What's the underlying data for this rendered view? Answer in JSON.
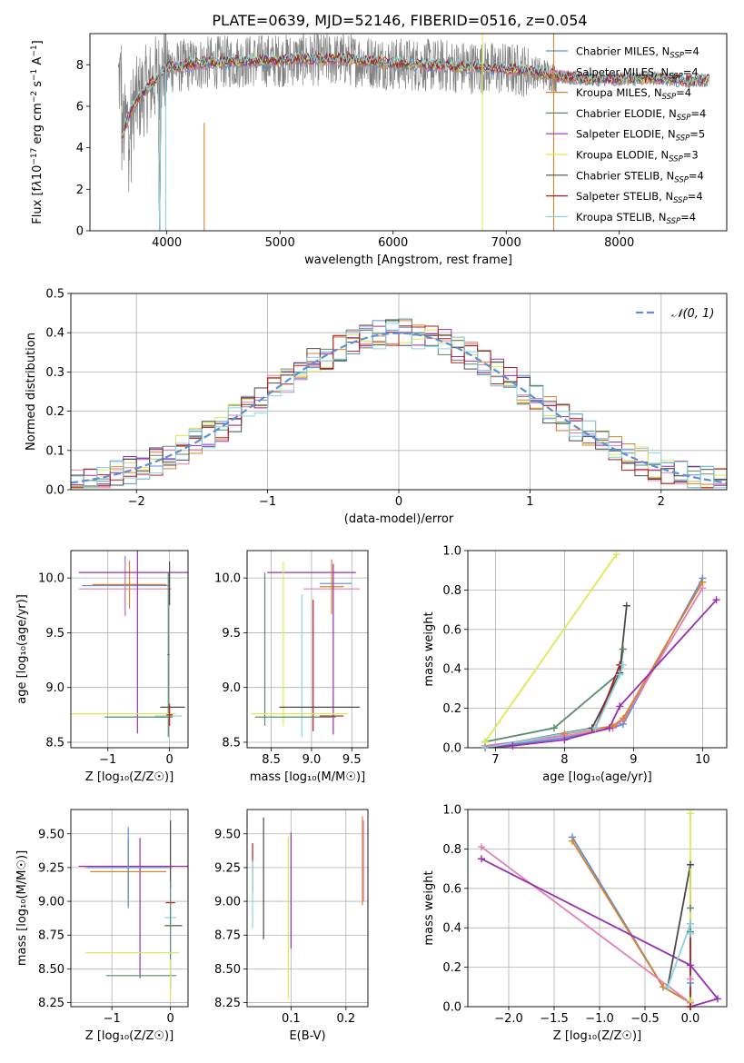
{
  "title": "PLATE=0639, MJD=52146, FIBERID=0516, z=0.054",
  "colors": {
    "c1": "#5b8fd6",
    "c2": "#e37fb4",
    "c3": "#d9822b",
    "c4": "#5a8a6a",
    "c5": "#9a2fb0",
    "c6": "#d8ec52",
    "c7": "#4a4a4a",
    "c8": "#b01e1e",
    "c9": "#88d4e0",
    "spec": "#808080",
    "grid": "#b0b0b0"
  },
  "chart_data": [
    {
      "id": "spectrum",
      "type": "line",
      "xlabel": "wavelength [Angstrom, rest frame]",
      "ylabel_html": "Flux [f<tspan font-style='italic'>λ</tspan>10<tspan dy='-5' font-size='9'>−17</tspan><tspan dy='5'> erg cm</tspan><tspan dy='-5' font-size='9'>−2</tspan><tspan dy='5'> s</tspan><tspan dy='-5' font-size='9'>−1</tspan><tspan dy='5'> A</tspan><tspan dy='-5' font-size='9'>−1</tspan><tspan dy='5'>]</tspan>",
      "xlim": [
        3320,
        8950
      ],
      "ylim": [
        0,
        9.5
      ],
      "xticks": [
        4000,
        5000,
        6000,
        7000,
        8000
      ],
      "yticks": [
        0,
        2,
        4,
        6,
        8
      ],
      "grid": false,
      "legend_position": "upper-right",
      "continuum": {
        "x": [
          3600,
          3700,
          3800,
          3900,
          4000,
          4100,
          4200,
          4400,
          4600,
          4800,
          5000,
          5200,
          5400,
          5600,
          5800,
          6000,
          6200,
          6400,
          6600,
          6800,
          7000,
          7200,
          7400,
          7600,
          7800,
          8000,
          8200,
          8400,
          8600,
          8800
        ],
        "y": [
          4.6,
          6.0,
          6.7,
          7.3,
          7.9,
          7.9,
          8.0,
          8.1,
          8.15,
          8.2,
          8.2,
          8.25,
          8.25,
          8.25,
          8.15,
          8.05,
          8.0,
          7.95,
          7.9,
          7.85,
          7.8,
          7.7,
          7.5,
          7.35,
          7.3,
          7.3,
          7.35,
          7.35,
          7.2,
          7.3
        ]
      },
      "legend": [
        {
          "pre": "Chabrier MILES, N",
          "sub": "SSP",
          "post": "=4",
          "color": "c1"
        },
        {
          "pre": "Salpeter MILES, N",
          "sub": "SSP",
          "post": "=4",
          "color": "c2"
        },
        {
          "pre": "Kroupa MILES, N",
          "sub": "SSP",
          "post": "=4",
          "color": "c3"
        },
        {
          "pre": "Chabrier ELODIE, N",
          "sub": "SSP",
          "post": "=4",
          "color": "c4"
        },
        {
          "pre": "Salpeter ELODIE, N",
          "sub": "SSP",
          "post": "=5",
          "color": "c5"
        },
        {
          "pre": "Kroupa ELODIE, N",
          "sub": "SSP",
          "post": "=3",
          "color": "c6"
        },
        {
          "pre": "Chabrier STELIB, N",
          "sub": "SSP",
          "post": "=4",
          "color": "c7"
        },
        {
          "pre": "Salpeter STELIB, N",
          "sub": "SSP",
          "post": "=4",
          "color": "c8"
        },
        {
          "pre": "Kroupa STELIB, N",
          "sub": "SSP",
          "post": "=4",
          "color": "c9"
        }
      ]
    },
    {
      "id": "residuals",
      "type": "line",
      "xlabel": "(data-model)/error",
      "ylabel": "Normed distribution",
      "xlim": [
        -2.5,
        2.5
      ],
      "ylim": [
        0,
        0.5
      ],
      "xticks": [
        -2,
        -1,
        0,
        1,
        2
      ],
      "yticks": [
        0,
        0.1,
        0.2,
        0.3,
        0.4,
        0.5
      ],
      "grid": true,
      "legend_position": "upper-right",
      "legend": [
        {
          "label": "𝒩(0, 1)",
          "color": "c1",
          "dashed": true
        }
      ]
    },
    {
      "id": "age_vs_Z",
      "type": "scatter",
      "xlabel": "Z [log₁₀(Z/Z☉)]",
      "ylabel": "age  [log₁₀(age/yr)]",
      "xlim": [
        -1.6,
        0.3
      ],
      "ylim": [
        8.45,
        10.25
      ],
      "xticks": [
        -1,
        0
      ],
      "yticks": [
        8.5,
        9.0,
        9.5,
        10.0
      ],
      "grid": true,
      "points": [
        {
          "c": "c1",
          "x": -0.72,
          "y": 9.93,
          "xe": 0.7,
          "ye": 0.27
        },
        {
          "c": "c2",
          "x": -0.72,
          "y": 9.9,
          "xe": 0.75,
          "ye": 0.25
        },
        {
          "c": "c3",
          "x": -0.65,
          "y": 9.94,
          "xe": 0.6,
          "ye": 0.22
        },
        {
          "c": "c5",
          "x": -0.52,
          "y": 10.05,
          "xe": 0.95,
          "ye": 0.0
        },
        {
          "c": "c5",
          "x": -0.52,
          "y": 9.45,
          "xe": 0.0,
          "ye": 0.87
        },
        {
          "c": "c4",
          "x": -0.02,
          "y": 9.3,
          "xe": 0.02,
          "ye": 0.75
        },
        {
          "c": "c7",
          "x": 0.0,
          "y": 9.95,
          "xe": 0.0,
          "ye": 0.2
        },
        {
          "c": "c7",
          "x": 0.05,
          "y": 8.82,
          "xe": 0.2,
          "ye": 0.0
        },
        {
          "c": "c6",
          "x": -0.85,
          "y": 8.76,
          "xe": 0.95,
          "ye": 0.0
        },
        {
          "c": "c9",
          "x": -0.02,
          "y": 8.74,
          "xe": 0.22,
          "ye": 0.0
        },
        {
          "c": "c4",
          "x": -0.5,
          "y": 8.73,
          "xe": 0.55,
          "ye": 0.0
        },
        {
          "c": "c8",
          "x": 0.0,
          "y": 8.75,
          "xe": 0.05,
          "ye": 0.1
        }
      ]
    },
    {
      "id": "age_vs_mass",
      "type": "scatter",
      "xlabel": "mass [log₁₀(M/M☉)]",
      "ylabel": "",
      "xlim": [
        8.2,
        9.7
      ],
      "ylim": [
        8.45,
        10.25
      ],
      "xticks": [
        8.5,
        9.0,
        9.5
      ],
      "yticks": [
        8.5,
        9.0,
        9.5,
        10.0
      ],
      "grid": true,
      "points": [
        {
          "c": "c5",
          "x": 9.0,
          "y": 10.05,
          "xe": 0.55,
          "ye": 0.0
        },
        {
          "c": "c2",
          "x": 9.25,
          "y": 9.9,
          "xe": 0.35,
          "ye": 0.0
        },
        {
          "c": "c3",
          "x": 9.25,
          "y": 9.92,
          "xe": 0.15,
          "ye": 0.25
        },
        {
          "c": "c1",
          "x": 9.3,
          "y": 9.95,
          "xe": 0.2,
          "ye": 0.0
        },
        {
          "c": "c4",
          "x": 8.42,
          "y": 9.35,
          "xe": 0.0,
          "ye": 0.7
        },
        {
          "c": "c6",
          "x": 8.65,
          "y": 9.4,
          "xe": 0.0,
          "ye": 0.75
        },
        {
          "c": "c9",
          "x": 8.88,
          "y": 9.2,
          "xe": 0.0,
          "ye": 0.65
        },
        {
          "c": "c8",
          "x": 9.02,
          "y": 9.2,
          "xe": 0.0,
          "ye": 0.6
        },
        {
          "c": "c5",
          "x": 9.27,
          "y": 9.35,
          "xe": 0.0,
          "ye": 0.78
        },
        {
          "c": "c7",
          "x": 9.1,
          "y": 8.82,
          "xe": 0.5,
          "ye": 0.0
        },
        {
          "c": "c6",
          "x": 8.85,
          "y": 8.76,
          "xe": 0.6,
          "ye": 0.0
        },
        {
          "c": "c4",
          "x": 8.8,
          "y": 8.73,
          "xe": 0.5,
          "ye": 0.0
        },
        {
          "c": "c8",
          "x": 9.25,
          "y": 8.74,
          "xe": 0.15,
          "ye": 0.0
        }
      ]
    },
    {
      "id": "weight_vs_age",
      "type": "line",
      "xlabel": "age  [log₁₀(age/yr)]",
      "ylabel": "mass weight",
      "xlim": [
        6.6,
        10.35
      ],
      "ylim": [
        0,
        1
      ],
      "xticks": [
        7,
        8,
        9,
        10
      ],
      "yticks": [
        0,
        0.2,
        0.4,
        0.6,
        0.8,
        1.0
      ],
      "grid": true,
      "series": [
        {
          "c": "c1",
          "x": [
            6.85,
            8.0,
            8.7,
            8.85,
            10.0
          ],
          "y": [
            0.0,
            0.05,
            0.1,
            0.12,
            0.86
          ]
        },
        {
          "c": "c2",
          "x": [
            6.85,
            8.0,
            8.7,
            8.85,
            10.0
          ],
          "y": [
            0.01,
            0.06,
            0.1,
            0.14,
            0.81
          ]
        },
        {
          "c": "c3",
          "x": [
            6.85,
            8.0,
            8.7,
            8.85,
            10.0
          ],
          "y": [
            0.0,
            0.07,
            0.11,
            0.15,
            0.84
          ]
        },
        {
          "c": "c5",
          "x": [
            6.85,
            7.25,
            8.0,
            8.65,
            8.8,
            10.2
          ],
          "y": [
            0.0,
            0.01,
            0.04,
            0.1,
            0.21,
            0.75
          ]
        },
        {
          "c": "c4",
          "x": [
            6.85,
            7.85,
            8.8,
            8.85
          ],
          "y": [
            0.03,
            0.1,
            0.38,
            0.5
          ]
        },
        {
          "c": "c7",
          "x": [
            6.85,
            8.4,
            8.8,
            8.9
          ],
          "y": [
            0.0,
            0.1,
            0.38,
            0.72
          ]
        },
        {
          "c": "c6",
          "x": [
            6.85,
            8.75
          ],
          "y": [
            0.03,
            0.98
          ]
        },
        {
          "c": "c8",
          "x": [
            6.85,
            8.45,
            8.8
          ],
          "y": [
            0.0,
            0.1,
            0.42
          ]
        },
        {
          "c": "c9",
          "x": [
            6.85,
            8.45,
            8.8,
            8.85
          ],
          "y": [
            0.0,
            0.1,
            0.37,
            0.42
          ]
        }
      ]
    },
    {
      "id": "mass_vs_Z",
      "type": "scatter",
      "xlabel": "Z [log₁₀(Z/Z☉)]",
      "ylabel": "mass [log₁₀(M/M☉)]",
      "xlim": [
        -1.7,
        0.3
      ],
      "ylim": [
        8.22,
        9.68
      ],
      "xticks": [
        -1,
        0
      ],
      "yticks": [
        8.25,
        8.5,
        8.75,
        9.0,
        9.25,
        9.5
      ],
      "grid": true,
      "points": [
        {
          "c": "c5",
          "x": -0.52,
          "y": 9.26,
          "xe": 1.05,
          "ye": 0.0
        },
        {
          "c": "c5",
          "x": -0.52,
          "y": 8.95,
          "xe": 0.0,
          "ye": 0.52
        },
        {
          "c": "c2",
          "x": -0.72,
          "y": 9.25,
          "xe": 0.75,
          "ye": 0.0
        },
        {
          "c": "c3",
          "x": -0.72,
          "y": 9.22,
          "xe": 0.65,
          "ye": 0.25
        },
        {
          "c": "c1",
          "x": -0.72,
          "y": 9.25,
          "xe": 0.7,
          "ye": 0.3
        },
        {
          "c": "c7",
          "x": 0.0,
          "y": 9.35,
          "xe": 0.0,
          "ye": 0.25
        },
        {
          "c": "c8",
          "x": 0.0,
          "y": 8.99,
          "xe": 0.08,
          "ye": 0.0
        },
        {
          "c": "c9",
          "x": 0.0,
          "y": 8.88,
          "xe": 0.1,
          "ye": 0.1
        },
        {
          "c": "c7",
          "x": 0.05,
          "y": 8.82,
          "xe": 0.15,
          "ye": 0.0
        },
        {
          "c": "c4",
          "x": 0.0,
          "y": 8.75,
          "xe": 0.0,
          "ye": 0.4
        },
        {
          "c": "c6",
          "x": -0.65,
          "y": 8.62,
          "xe": 0.8,
          "ye": 0.0
        },
        {
          "c": "c4",
          "x": -0.5,
          "y": 8.45,
          "xe": 0.6,
          "ye": 0.0
        },
        {
          "c": "c6",
          "x": 0.0,
          "y": 8.42,
          "xe": 0.0,
          "ye": 0.15
        }
      ]
    },
    {
      "id": "mass_vs_EBV",
      "type": "scatter",
      "xlabel": "E(B-V)",
      "ylabel": "",
      "xlim": [
        0.02,
        0.24
      ],
      "ylim": [
        8.22,
        9.68
      ],
      "xticks": [
        0.1,
        0.2
      ],
      "yticks": [
        8.25,
        8.5,
        8.75,
        9.0,
        9.25,
        9.5
      ],
      "grid": true,
      "points": [
        {
          "c": "c8",
          "x": 0.03,
          "y": 9.25,
          "xe": 0.0,
          "ye": 0.18
        },
        {
          "c": "c9",
          "x": 0.03,
          "y": 9.05,
          "xe": 0.0,
          "ye": 0.25
        },
        {
          "c": "c7",
          "x": 0.05,
          "y": 9.17,
          "xe": 0.0,
          "ye": 0.45
        },
        {
          "c": "c6",
          "x": 0.095,
          "y": 8.88,
          "xe": 0.0,
          "ye": 0.6
        },
        {
          "c": "c5",
          "x": 0.1,
          "y": 9.08,
          "xe": 0.0,
          "ye": 0.43
        },
        {
          "c": "c3",
          "x": 0.23,
          "y": 9.3,
          "xe": 0.0,
          "ye": 0.33
        },
        {
          "c": "c2",
          "x": 0.232,
          "y": 9.3,
          "xe": 0.0,
          "ye": 0.3
        }
      ]
    },
    {
      "id": "weight_vs_Z",
      "type": "line",
      "xlabel": "Z [log₁₀(Z/Z☉)]",
      "ylabel": "mass weight",
      "xlim": [
        -2.45,
        0.4
      ],
      "ylim": [
        0,
        1
      ],
      "xticks": [
        -2.0,
        -1.5,
        -1.0,
        -0.5,
        0.0
      ],
      "yticks": [
        0,
        0.2,
        0.4,
        0.6,
        0.8,
        1.0
      ],
      "grid": true,
      "series": [
        {
          "c": "c1",
          "x": [
            -1.3,
            -0.3,
            0.0,
            0.0
          ],
          "y": [
            0.86,
            0.1,
            0.02,
            0.12
          ]
        },
        {
          "c": "c3",
          "x": [
            -1.3,
            -0.3,
            0.0
          ],
          "y": [
            0.84,
            0.1,
            0.02
          ]
        },
        {
          "c": "c2",
          "x": [
            -2.3,
            0.0,
            0.0
          ],
          "y": [
            0.81,
            0.02,
            0.14
          ]
        },
        {
          "c": "c5",
          "x": [
            -2.3,
            0.0,
            0.3,
            0.0
          ],
          "y": [
            0.75,
            0.21,
            0.04,
            0.0
          ]
        },
        {
          "c": "c7",
          "x": [
            -0.25,
            0.0,
            0.0,
            0.0
          ],
          "y": [
            0.1,
            0.72,
            0.38,
            0.0
          ]
        },
        {
          "c": "c4",
          "x": [
            0.0,
            0.0,
            0.0
          ],
          "y": [
            0.03,
            0.38,
            0.5
          ]
        },
        {
          "c": "c6",
          "x": [
            0.0,
            0.0
          ],
          "y": [
            0.98,
            0.03
          ]
        },
        {
          "c": "c8",
          "x": [
            0.0,
            0.0
          ],
          "y": [
            0.0,
            0.42
          ]
        },
        {
          "c": "c9",
          "x": [
            -0.25,
            0.0,
            0.0
          ],
          "y": [
            0.1,
            0.42,
            0.37
          ]
        }
      ]
    }
  ]
}
